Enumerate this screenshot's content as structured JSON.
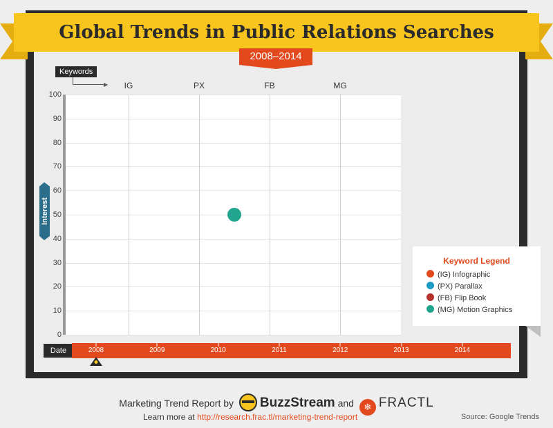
{
  "title": "Global Trends in Public Relations Searches",
  "subtitle": "2008–2014",
  "keywords_label": "Keywords",
  "interest_label": "Interest",
  "date_label": "Date",
  "legend": {
    "title": "Keyword Legend",
    "items": [
      {
        "label": "(IG) Infographic",
        "color": "#e24a1e"
      },
      {
        "label": "(PX) Parallax",
        "color": "#1b9bc6"
      },
      {
        "label": "(FB) Flip Book",
        "color": "#b7312c"
      },
      {
        "label": "(MG) Motion Graphics",
        "color": "#22a58f"
      }
    ]
  },
  "chart_data": {
    "type": "scatter",
    "title": "Global Trends in Public Relations Searches",
    "subtitle": "2008–2014",
    "keyword_columns": [
      "IG",
      "PX",
      "FB",
      "MG"
    ],
    "ylabel": "Interest",
    "xlabel": "Date",
    "ylim": [
      0,
      100
    ],
    "y_ticks": [
      0,
      10,
      20,
      30,
      40,
      50,
      60,
      70,
      80,
      90,
      100
    ],
    "timeline_years": [
      "2008",
      "2009",
      "2010",
      "2011",
      "2012",
      "2013",
      "2014"
    ],
    "selected_year": "2008",
    "grid": true,
    "legend_position": "right",
    "points": [
      {
        "keyword": "MG",
        "series": "(MG) Motion Graphics",
        "column_offset": 0.5,
        "interest": 50,
        "color": "#22a58f"
      }
    ]
  },
  "footer": {
    "prefix": "Marketing Trend Report by",
    "brand1": "BuzzStream",
    "conjunction": "and",
    "brand2": "FRACTL",
    "learn_prefix": "Learn more at",
    "learn_url": "http://research.frac.tl/marketing-trend-report",
    "source": "Source: Google Trends"
  }
}
